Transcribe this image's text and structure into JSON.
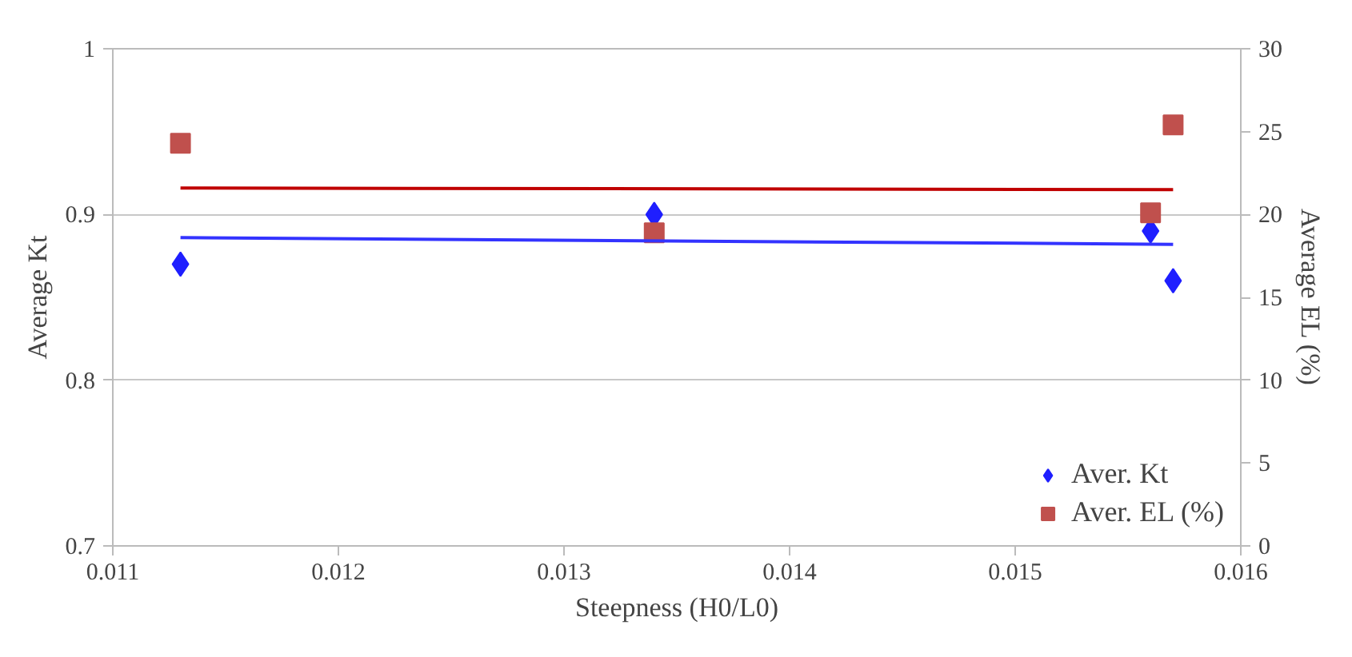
{
  "chart_data": {
    "type": "scatter",
    "xlabel": "Steepness (H0/L0)",
    "ylabel": "Average Kt",
    "y2label": "Average EL (%)",
    "xlim": [
      0.011,
      0.016
    ],
    "xticks": [
      0.011,
      0.012,
      0.013,
      0.014,
      0.015,
      0.016
    ],
    "ylim": [
      0.7,
      1
    ],
    "yticks": [
      0.7,
      0.8,
      0.9,
      1
    ],
    "y2lim": [
      0,
      30
    ],
    "y2ticks": [
      0,
      5,
      10,
      15,
      20,
      25,
      30
    ],
    "grid": "y",
    "legend": "bottom right",
    "series": [
      {
        "name": "Aver. Kt",
        "color": "#1f1fff",
        "marker": "diamond",
        "x": [
          0.0113,
          0.0134,
          0.0156,
          0.0157
        ],
        "values": [
          0.87,
          0.9,
          0.89,
          0.86
        ]
      },
      {
        "name": "Aver. EL (%)",
        "color": "#c0504d",
        "marker": "square",
        "axis": "y2",
        "x": [
          0.0113,
          0.0134,
          0.0156,
          0.0157
        ],
        "values": [
          24.3,
          18.9,
          20.1,
          25.4
        ]
      },
      {
        "type": "line",
        "color": "#3333ff",
        "x": [
          0.0113,
          0.0157
        ],
        "values": [
          0.886,
          0.882
        ]
      },
      {
        "type": "line",
        "color": "#c00000",
        "axis": "y2",
        "x": [
          0.0113,
          0.0157
        ],
        "values": [
          21.6,
          21.5
        ]
      }
    ]
  }
}
